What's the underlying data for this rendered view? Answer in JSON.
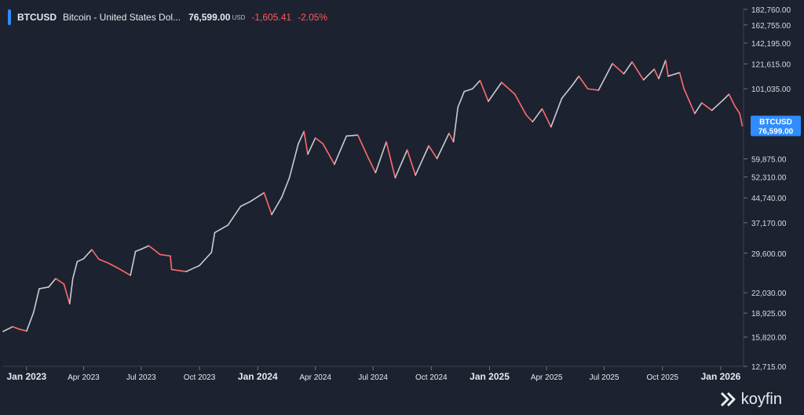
{
  "header": {
    "symbol": "BTCUSD",
    "name": "Bitcoin - United States Dol...",
    "price": "76,599.00",
    "currency": "USD",
    "change": "-1,605.41",
    "change_pct": "-2.05%"
  },
  "price_tag": {
    "symbol": "BTCUSD",
    "price": "76,599.00"
  },
  "brand": "koyfin",
  "colors": {
    "background": "#1d2230",
    "up": "#c9ccd2",
    "down": "#ff6b6b",
    "accent": "#2f8cff"
  },
  "chart_data": {
    "type": "line",
    "scale": "log",
    "ylim": [
      12715,
      182760
    ],
    "yticks": [
      "182,760.00",
      "162,755.00",
      "142,195.00",
      "121,615.00",
      "101,035.00",
      "59,875.00",
      "52,310.00",
      "44,740.00",
      "37,170.00",
      "29,600.00",
      "22,030.00",
      "18,925.00",
      "15,820.00",
      "12,715.00"
    ],
    "ytick_values": [
      182760,
      162755,
      142195,
      121615,
      101035,
      59875,
      52310,
      44740,
      37170,
      29600,
      22030,
      18925,
      15820,
      12715
    ],
    "xticks": [
      "Jan 2023",
      "Apr 2023",
      "Jul 2023",
      "Oct 2023",
      "Jan 2024",
      "Apr 2024",
      "Jul 2024",
      "Oct 2024",
      "Jan 2025",
      "Apr 2025",
      "Jul 2025",
      "Oct 2025",
      "Jan 2026"
    ],
    "xtick_bold": [
      true,
      false,
      false,
      false,
      true,
      false,
      false,
      false,
      true,
      false,
      false,
      false,
      true
    ],
    "xtick_dates": [
      "2023-01-01",
      "2023-04-01",
      "2023-07-01",
      "2023-10-01",
      "2024-01-01",
      "2024-04-01",
      "2024-07-01",
      "2024-10-01",
      "2025-01-01",
      "2025-04-01",
      "2025-07-01",
      "2025-10-01",
      "2026-01-01"
    ],
    "xlim": [
      "2022-11-25",
      "2026-02-06"
    ],
    "series": [
      {
        "values": [
          [
            "2022-11-25",
            16500
          ],
          [
            "2022-12-10",
            17100
          ],
          [
            "2022-12-20",
            16800
          ],
          [
            "2023-01-01",
            16550
          ],
          [
            "2023-01-12",
            19000
          ],
          [
            "2023-01-21",
            22700
          ],
          [
            "2023-02-05",
            23000
          ],
          [
            "2023-02-16",
            24500
          ],
          [
            "2023-03-01",
            23500
          ],
          [
            "2023-03-10",
            20300
          ],
          [
            "2023-03-15",
            24500
          ],
          [
            "2023-03-22",
            27800
          ],
          [
            "2023-04-01",
            28400
          ],
          [
            "2023-04-14",
            30400
          ],
          [
            "2023-04-25",
            28300
          ],
          [
            "2023-05-10",
            27500
          ],
          [
            "2023-05-25",
            26500
          ],
          [
            "2023-06-14",
            25100
          ],
          [
            "2023-06-22",
            30000
          ],
          [
            "2023-07-01",
            30500
          ],
          [
            "2023-07-13",
            31300
          ],
          [
            "2023-07-31",
            29300
          ],
          [
            "2023-08-16",
            29000
          ],
          [
            "2023-08-18",
            26200
          ],
          [
            "2023-09-10",
            25800
          ],
          [
            "2023-10-01",
            27000
          ],
          [
            "2023-10-20",
            29800
          ],
          [
            "2023-10-25",
            34500
          ],
          [
            "2023-11-15",
            36500
          ],
          [
            "2023-12-05",
            42000
          ],
          [
            "2023-12-20",
            43500
          ],
          [
            "2024-01-11",
            46500
          ],
          [
            "2024-01-23",
            39500
          ],
          [
            "2024-02-08",
            45000
          ],
          [
            "2024-02-20",
            52000
          ],
          [
            "2024-03-05",
            67000
          ],
          [
            "2024-03-14",
            73500
          ],
          [
            "2024-03-20",
            62000
          ],
          [
            "2024-04-01",
            70000
          ],
          [
            "2024-04-13",
            67000
          ],
          [
            "2024-05-01",
            57500
          ],
          [
            "2024-05-20",
            71000
          ],
          [
            "2024-06-07",
            71500
          ],
          [
            "2024-06-24",
            60000
          ],
          [
            "2024-07-05",
            54000
          ],
          [
            "2024-07-22",
            68000
          ],
          [
            "2024-08-05",
            52000
          ],
          [
            "2024-08-24",
            64000
          ],
          [
            "2024-09-06",
            53000
          ],
          [
            "2024-09-27",
            66000
          ],
          [
            "2024-10-10",
            60000
          ],
          [
            "2024-10-29",
            72500
          ],
          [
            "2024-11-05",
            68000
          ],
          [
            "2024-11-12",
            88000
          ],
          [
            "2024-11-22",
            99000
          ],
          [
            "2024-12-05",
            101000
          ],
          [
            "2024-12-17",
            107500
          ],
          [
            "2024-12-30",
            92000
          ],
          [
            "2025-01-20",
            106000
          ],
          [
            "2025-02-10",
            97000
          ],
          [
            "2025-02-28",
            83000
          ],
          [
            "2025-03-10",
            79000
          ],
          [
            "2025-03-25",
            87000
          ],
          [
            "2025-04-08",
            76000
          ],
          [
            "2025-04-25",
            94000
          ],
          [
            "2025-05-12",
            104000
          ],
          [
            "2025-05-22",
            111000
          ],
          [
            "2025-06-05",
            101000
          ],
          [
            "2025-06-22",
            100000
          ],
          [
            "2025-07-14",
            122000
          ],
          [
            "2025-08-01",
            113000
          ],
          [
            "2025-08-14",
            123500
          ],
          [
            "2025-09-01",
            108000
          ],
          [
            "2025-09-18",
            117000
          ],
          [
            "2025-09-25",
            109000
          ],
          [
            "2025-10-06",
            125000
          ],
          [
            "2025-10-10",
            111000
          ],
          [
            "2025-10-28",
            114000
          ],
          [
            "2025-11-04",
            101000
          ],
          [
            "2025-11-21",
            84000
          ],
          [
            "2025-12-02",
            91000
          ],
          [
            "2025-12-18",
            86000
          ],
          [
            "2026-01-05",
            93000
          ],
          [
            "2026-01-14",
            97000
          ],
          [
            "2026-01-23",
            89000
          ],
          [
            "2026-01-31",
            84000
          ],
          [
            "2026-02-04",
            76599
          ]
        ]
      }
    ]
  }
}
